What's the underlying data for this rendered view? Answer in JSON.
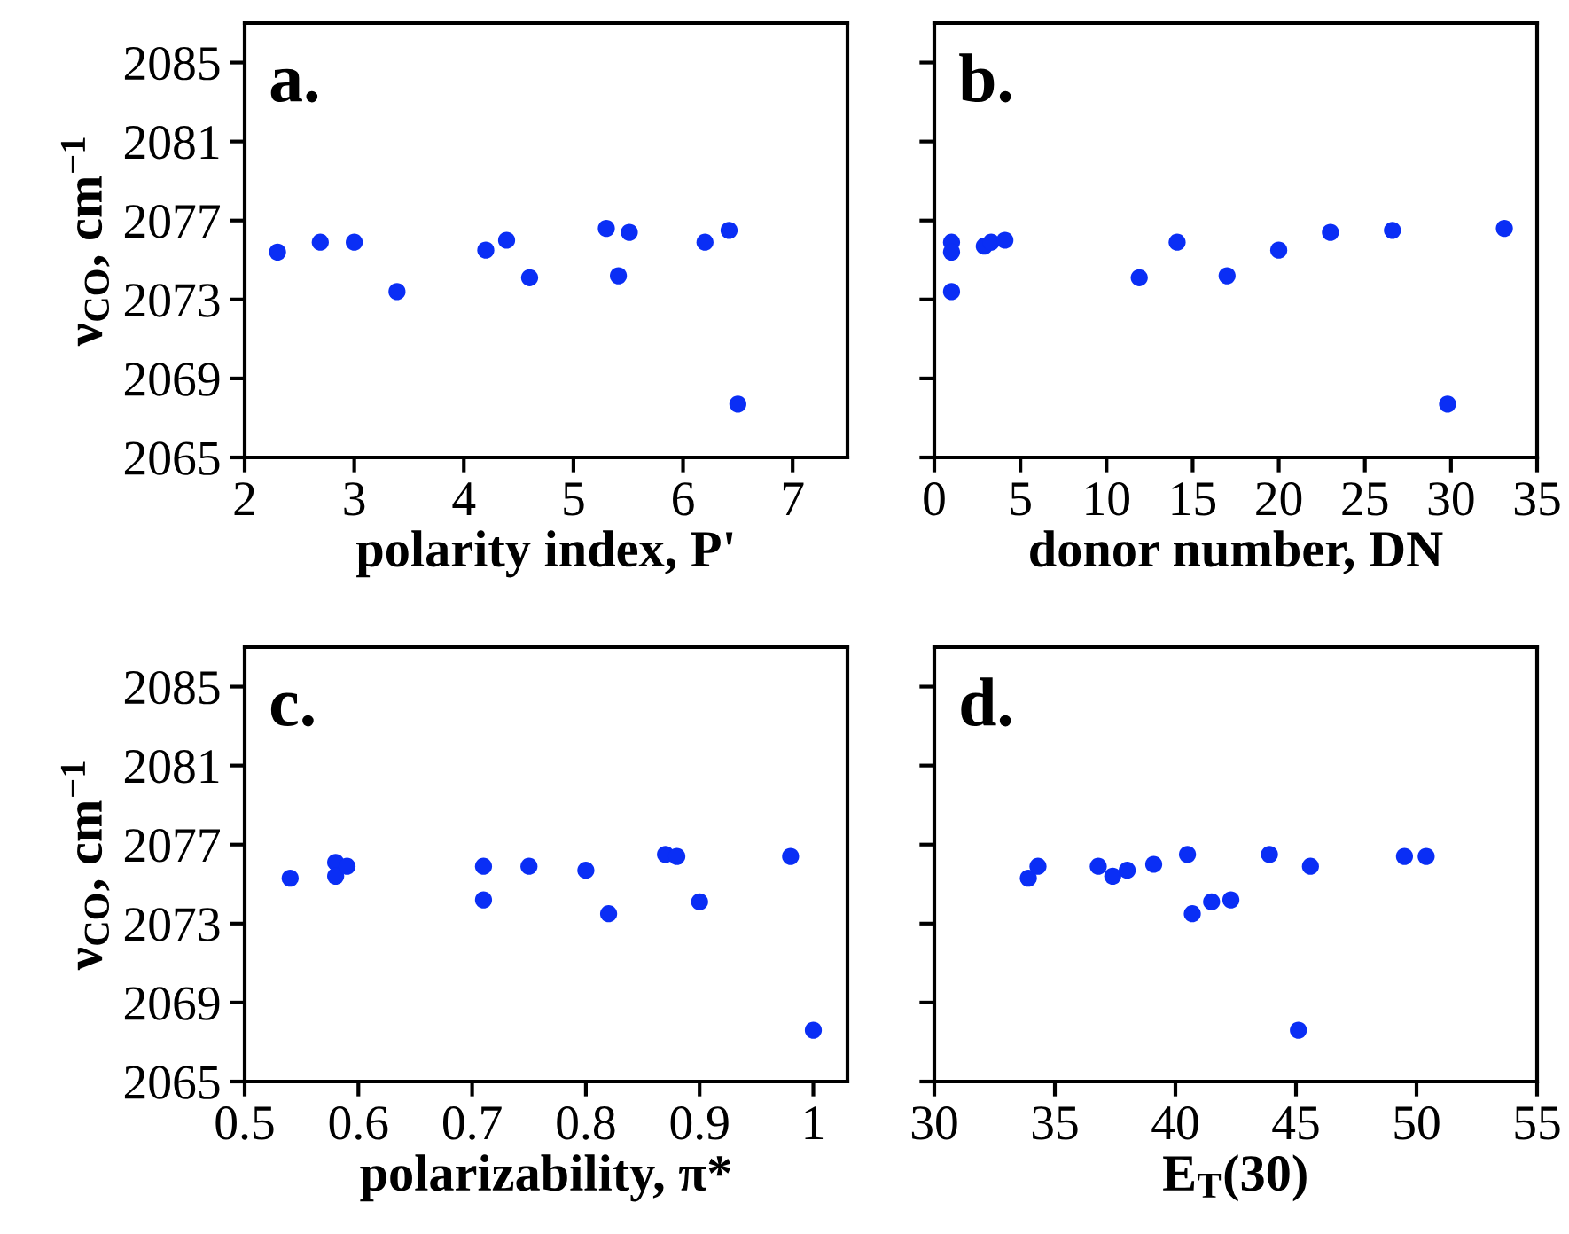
{
  "chart_data": [
    {
      "type": "scatter",
      "annotations": [
        "a."
      ],
      "xlabel": "polarity index, P'",
      "ylabel": "ν$_{CO}$, cm$^{−1}$",
      "xlim": [
        2,
        7.5
      ],
      "xticks": [
        2,
        3,
        4,
        5,
        6,
        7
      ],
      "ylim": [
        2065,
        2087
      ],
      "yticks": [
        2065,
        2069,
        2073,
        2077,
        2081,
        2085
      ],
      "grid": false,
      "marker": "circle",
      "series": [
        {
          "color": "#0a2ef5",
          "x": [
            2.3,
            2.69,
            3.0,
            3.39,
            4.2,
            4.39,
            4.6,
            5.3,
            5.41,
            5.51,
            6.2,
            6.42,
            6.5
          ],
          "values": [
            2075.4,
            2075.9,
            2075.9,
            2073.4,
            2075.5,
            2076.0,
            2074.1,
            2076.6,
            2074.2,
            2076.4,
            2075.9,
            2076.5,
            2067.7
          ]
        }
      ]
    },
    {
      "type": "scatter",
      "annotations": [
        "b."
      ],
      "xlabel": "donor number, DN",
      "xlim": [
        0,
        35
      ],
      "xticks": [
        0,
        5,
        10,
        15,
        20,
        25,
        30,
        35
      ],
      "ylim": [
        2065,
        2087
      ],
      "yticks": [
        {
          "value": 2065,
          "label": null
        },
        {
          "value": 2069,
          "label": null
        },
        {
          "value": 2073,
          "label": null
        },
        {
          "value": 2077,
          "label": null
        },
        {
          "value": 2081,
          "label": null
        },
        {
          "value": 2085,
          "label": null
        }
      ],
      "tick_labels": "x",
      "grid": false,
      "marker": "circle",
      "series": [
        {
          "color": "#0a2ef5",
          "x": [
            1.0,
            1.0,
            1.0,
            2.9,
            3.3,
            4.1,
            11.9,
            14.1,
            17.0,
            20.0,
            23.0,
            26.6,
            29.8,
            33.1
          ],
          "values": [
            2075.9,
            2075.4,
            2073.4,
            2075.7,
            2075.9,
            2076.0,
            2074.1,
            2075.9,
            2074.2,
            2075.5,
            2076.4,
            2076.5,
            2067.7,
            2076.6
          ]
        }
      ]
    },
    {
      "type": "scatter",
      "annotations": [
        "c."
      ],
      "xlabel": "polarizability, π*",
      "ylabel": "ν$_{CO}$, cm$^{−1}$",
      "xlim": [
        0.5,
        1.03
      ],
      "xticks": [
        0.5,
        0.6,
        0.7,
        0.8,
        0.9,
        1
      ],
      "ylim": [
        2065,
        2087
      ],
      "yticks": [
        2065,
        2069,
        2073,
        2077,
        2081,
        2085
      ],
      "grid": false,
      "marker": "circle",
      "series": [
        {
          "color": "#0a2ef5",
          "x": [
            0.54,
            0.58,
            0.58,
            0.59,
            0.71,
            0.71,
            0.75,
            0.8,
            0.82,
            0.87,
            0.88,
            0.9,
            0.98,
            1.0
          ],
          "values": [
            2075.3,
            2076.1,
            2075.4,
            2075.9,
            2075.9,
            2074.2,
            2075.9,
            2075.7,
            2073.5,
            2076.5,
            2076.4,
            2074.1,
            2076.4,
            2067.6
          ]
        }
      ]
    },
    {
      "type": "scatter",
      "annotations": [
        "d."
      ],
      "xlabel": "E$_{T}$(30)",
      "xlim": [
        30,
        55
      ],
      "xticks": [
        30,
        35,
        40,
        45,
        50,
        55
      ],
      "ylim": [
        2065,
        2087
      ],
      "yticks": [
        {
          "value": 2065,
          "label": null
        },
        {
          "value": 2069,
          "label": null
        },
        {
          "value": 2073,
          "label": null
        },
        {
          "value": 2077,
          "label": null
        },
        {
          "value": 2081,
          "label": null
        },
        {
          "value": 2085,
          "label": null
        }
      ],
      "tick_labels": "x",
      "grid": false,
      "marker": "circle",
      "series": [
        {
          "color": "#0a2ef5",
          "x": [
            33.9,
            34.3,
            36.8,
            37.4,
            38.0,
            39.1,
            40.5,
            40.7,
            41.5,
            42.3,
            43.9,
            45.1,
            45.6,
            49.5,
            50.4
          ],
          "values": [
            2075.3,
            2075.9,
            2075.9,
            2075.4,
            2075.7,
            2076.0,
            2076.5,
            2073.5,
            2074.1,
            2074.2,
            2076.5,
            2067.6,
            2075.9,
            2076.4,
            2076.4
          ]
        }
      ]
    }
  ]
}
